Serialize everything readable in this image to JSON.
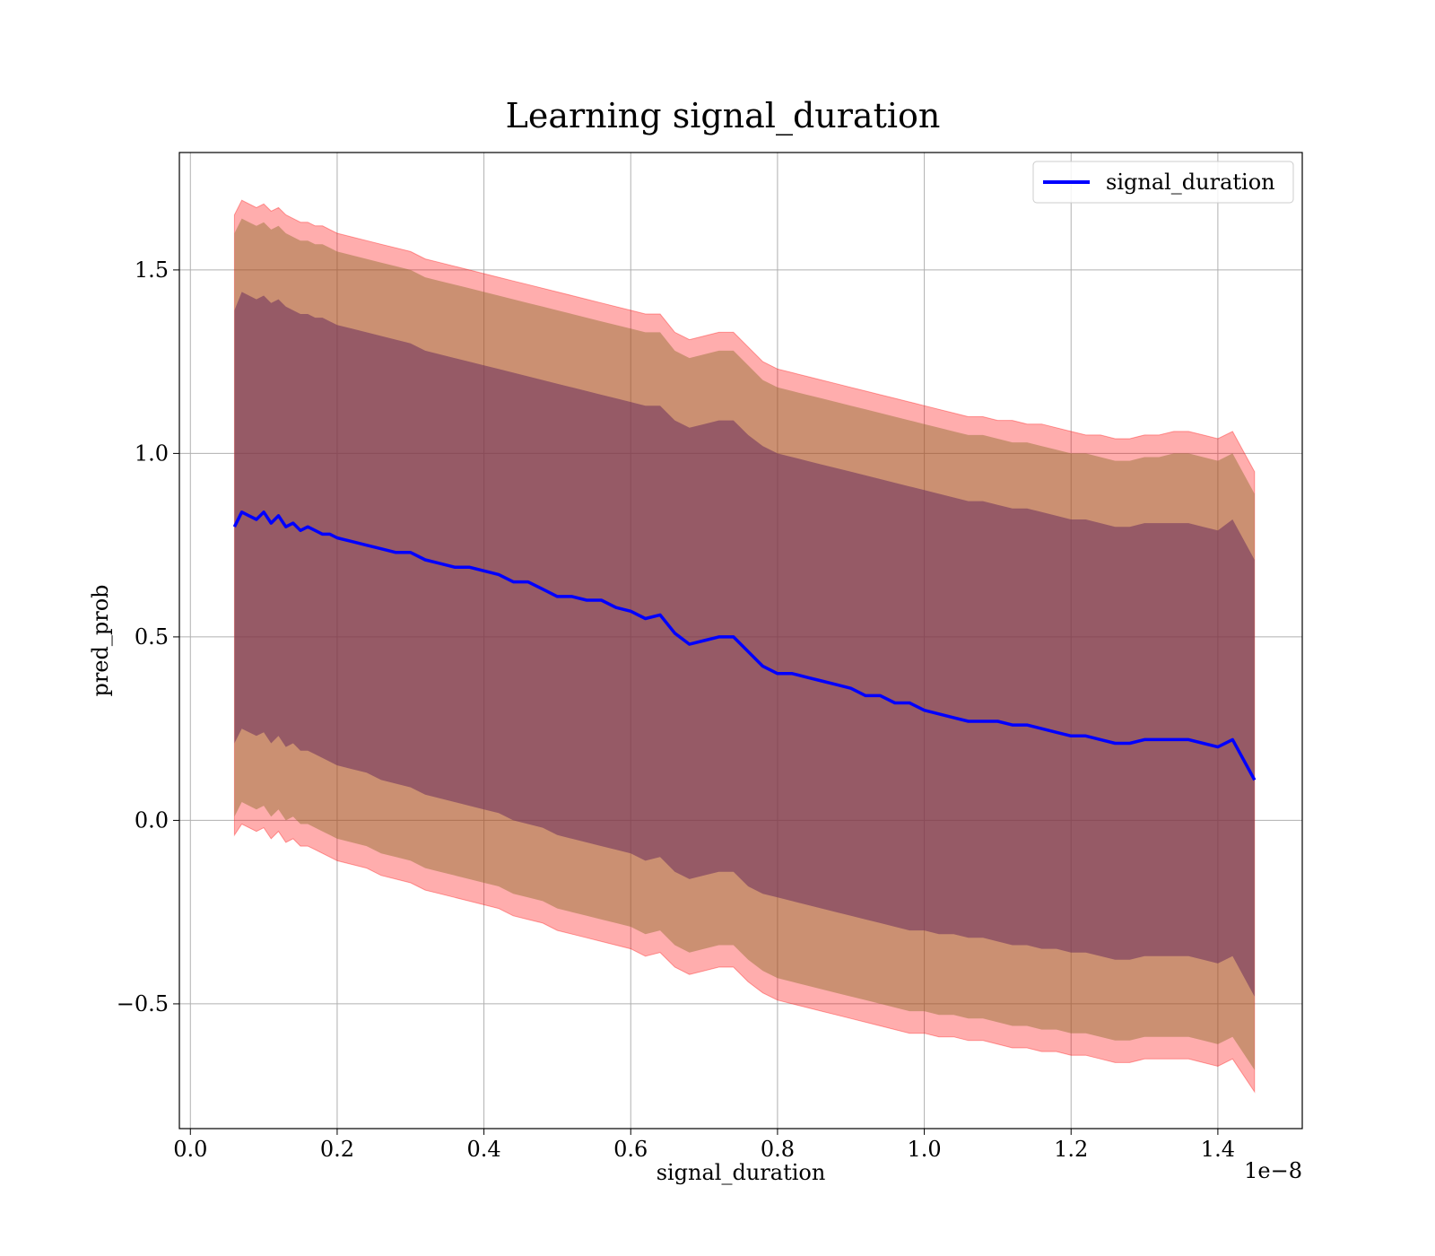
{
  "chart_data": {
    "type": "line",
    "title": "Learning signal_duration",
    "xlabel": "signal_duration",
    "ylabel": "pred_prob",
    "x_offset_label": "1e−8",
    "xlim": [
      -0.015,
      1.515
    ],
    "ylim": [
      -0.84,
      1.82
    ],
    "xticks": [
      0.0,
      0.2,
      0.4,
      0.6,
      0.8,
      1.0,
      1.2,
      1.4
    ],
    "xtick_labels": [
      "0.0",
      "0.2",
      "0.4",
      "0.6",
      "0.8",
      "1.0",
      "1.2",
      "1.4"
    ],
    "yticks": [
      -0.5,
      0.0,
      0.5,
      1.0,
      1.5
    ],
    "ytick_labels": [
      "−0.5",
      "0.0",
      "0.5",
      "1.0",
      "1.5"
    ],
    "grid": true,
    "legend_position": "top-right",
    "colors": {
      "line": "#0000ff",
      "band_outer": "#ff0000",
      "band_middle": "#8c6d2a",
      "band_inner": "#6b2d5c",
      "grid": "#b0b0b0"
    },
    "series": [
      {
        "name": "signal_duration",
        "x": [
          0.06,
          0.07,
          0.08,
          0.09,
          0.1,
          0.11,
          0.12,
          0.13,
          0.14,
          0.15,
          0.16,
          0.17,
          0.18,
          0.19,
          0.2,
          0.22,
          0.24,
          0.26,
          0.28,
          0.3,
          0.32,
          0.34,
          0.36,
          0.38,
          0.4,
          0.42,
          0.44,
          0.46,
          0.48,
          0.5,
          0.52,
          0.54,
          0.56,
          0.58,
          0.6,
          0.62,
          0.64,
          0.66,
          0.68,
          0.7,
          0.72,
          0.74,
          0.76,
          0.78,
          0.8,
          0.82,
          0.84,
          0.86,
          0.88,
          0.9,
          0.92,
          0.94,
          0.96,
          0.98,
          1.0,
          1.02,
          1.04,
          1.06,
          1.08,
          1.1,
          1.12,
          1.14,
          1.16,
          1.18,
          1.2,
          1.22,
          1.24,
          1.26,
          1.28,
          1.3,
          1.32,
          1.34,
          1.36,
          1.38,
          1.4,
          1.42,
          1.45
        ],
        "y": [
          0.8,
          0.84,
          0.83,
          0.82,
          0.84,
          0.81,
          0.83,
          0.8,
          0.81,
          0.79,
          0.8,
          0.79,
          0.78,
          0.78,
          0.77,
          0.76,
          0.75,
          0.74,
          0.73,
          0.73,
          0.71,
          0.7,
          0.69,
          0.69,
          0.68,
          0.67,
          0.65,
          0.65,
          0.63,
          0.61,
          0.61,
          0.6,
          0.6,
          0.58,
          0.57,
          0.55,
          0.56,
          0.51,
          0.48,
          0.49,
          0.5,
          0.5,
          0.46,
          0.42,
          0.4,
          0.4,
          0.39,
          0.38,
          0.37,
          0.36,
          0.34,
          0.34,
          0.32,
          0.32,
          0.3,
          0.29,
          0.28,
          0.27,
          0.27,
          0.27,
          0.26,
          0.26,
          0.25,
          0.24,
          0.23,
          0.23,
          0.22,
          0.21,
          0.21,
          0.22,
          0.22,
          0.22,
          0.22,
          0.21,
          0.2,
          0.22,
          0.11
        ],
        "band_outer": {
          "upper": [
            1.65,
            1.69,
            1.68,
            1.67,
            1.68,
            1.66,
            1.67,
            1.65,
            1.64,
            1.63,
            1.63,
            1.62,
            1.62,
            1.61,
            1.6,
            1.59,
            1.58,
            1.57,
            1.56,
            1.55,
            1.53,
            1.52,
            1.51,
            1.5,
            1.49,
            1.48,
            1.47,
            1.46,
            1.45,
            1.44,
            1.43,
            1.42,
            1.41,
            1.4,
            1.39,
            1.38,
            1.38,
            1.33,
            1.31,
            1.32,
            1.33,
            1.33,
            1.29,
            1.25,
            1.23,
            1.22,
            1.21,
            1.2,
            1.19,
            1.18,
            1.17,
            1.16,
            1.15,
            1.14,
            1.13,
            1.12,
            1.11,
            1.1,
            1.1,
            1.09,
            1.09,
            1.08,
            1.08,
            1.07,
            1.06,
            1.05,
            1.05,
            1.04,
            1.04,
            1.05,
            1.05,
            1.06,
            1.06,
            1.05,
            1.04,
            1.06,
            0.95
          ],
          "lower": [
            -0.04,
            -0.01,
            -0.02,
            -0.03,
            -0.02,
            -0.05,
            -0.03,
            -0.06,
            -0.05,
            -0.07,
            -0.07,
            -0.08,
            -0.09,
            -0.1,
            -0.11,
            -0.12,
            -0.13,
            -0.15,
            -0.16,
            -0.17,
            -0.19,
            -0.2,
            -0.21,
            -0.22,
            -0.23,
            -0.24,
            -0.26,
            -0.27,
            -0.28,
            -0.3,
            -0.31,
            -0.32,
            -0.33,
            -0.34,
            -0.35,
            -0.37,
            -0.36,
            -0.4,
            -0.42,
            -0.41,
            -0.4,
            -0.4,
            -0.44,
            -0.47,
            -0.49,
            -0.5,
            -0.51,
            -0.52,
            -0.53,
            -0.54,
            -0.55,
            -0.56,
            -0.57,
            -0.58,
            -0.58,
            -0.59,
            -0.59,
            -0.6,
            -0.6,
            -0.61,
            -0.62,
            -0.62,
            -0.63,
            -0.63,
            -0.64,
            -0.64,
            -0.65,
            -0.66,
            -0.66,
            -0.65,
            -0.65,
            -0.65,
            -0.65,
            -0.66,
            -0.67,
            -0.65,
            -0.74
          ]
        },
        "band_middle": {
          "upper": [
            1.6,
            1.64,
            1.63,
            1.62,
            1.63,
            1.61,
            1.62,
            1.6,
            1.59,
            1.58,
            1.58,
            1.57,
            1.57,
            1.56,
            1.55,
            1.54,
            1.53,
            1.52,
            1.51,
            1.5,
            1.48,
            1.47,
            1.46,
            1.45,
            1.44,
            1.43,
            1.42,
            1.41,
            1.4,
            1.39,
            1.38,
            1.37,
            1.36,
            1.35,
            1.34,
            1.33,
            1.33,
            1.28,
            1.26,
            1.27,
            1.28,
            1.28,
            1.24,
            1.2,
            1.18,
            1.17,
            1.16,
            1.15,
            1.14,
            1.13,
            1.12,
            1.11,
            1.1,
            1.09,
            1.08,
            1.07,
            1.06,
            1.05,
            1.05,
            1.04,
            1.03,
            1.03,
            1.02,
            1.01,
            1.0,
            1.0,
            0.99,
            0.98,
            0.98,
            0.99,
            0.99,
            1.0,
            1.0,
            0.99,
            0.98,
            1.0,
            0.89
          ],
          "lower": [
            0.01,
            0.05,
            0.04,
            0.03,
            0.04,
            0.01,
            0.03,
            0.0,
            0.01,
            -0.01,
            -0.01,
            -0.02,
            -0.03,
            -0.04,
            -0.05,
            -0.06,
            -0.07,
            -0.09,
            -0.1,
            -0.11,
            -0.13,
            -0.14,
            -0.15,
            -0.16,
            -0.17,
            -0.18,
            -0.2,
            -0.21,
            -0.22,
            -0.24,
            -0.25,
            -0.26,
            -0.27,
            -0.28,
            -0.29,
            -0.31,
            -0.3,
            -0.34,
            -0.36,
            -0.35,
            -0.34,
            -0.34,
            -0.38,
            -0.41,
            -0.43,
            -0.44,
            -0.45,
            -0.46,
            -0.47,
            -0.48,
            -0.49,
            -0.5,
            -0.51,
            -0.52,
            -0.52,
            -0.53,
            -0.53,
            -0.54,
            -0.54,
            -0.55,
            -0.56,
            -0.56,
            -0.57,
            -0.57,
            -0.58,
            -0.58,
            -0.59,
            -0.6,
            -0.6,
            -0.59,
            -0.59,
            -0.59,
            -0.59,
            -0.6,
            -0.61,
            -0.59,
            -0.68
          ]
        },
        "band_inner": {
          "upper": [
            1.39,
            1.44,
            1.43,
            1.42,
            1.43,
            1.41,
            1.42,
            1.4,
            1.39,
            1.38,
            1.38,
            1.37,
            1.37,
            1.36,
            1.35,
            1.34,
            1.33,
            1.32,
            1.31,
            1.3,
            1.28,
            1.27,
            1.26,
            1.25,
            1.24,
            1.23,
            1.22,
            1.21,
            1.2,
            1.19,
            1.18,
            1.17,
            1.16,
            1.15,
            1.14,
            1.13,
            1.13,
            1.09,
            1.07,
            1.08,
            1.09,
            1.09,
            1.05,
            1.02,
            1.0,
            0.99,
            0.98,
            0.97,
            0.96,
            0.95,
            0.94,
            0.93,
            0.92,
            0.91,
            0.9,
            0.89,
            0.88,
            0.87,
            0.87,
            0.86,
            0.85,
            0.85,
            0.84,
            0.83,
            0.82,
            0.82,
            0.81,
            0.8,
            0.8,
            0.81,
            0.81,
            0.81,
            0.81,
            0.8,
            0.79,
            0.82,
            0.71
          ],
          "lower": [
            0.21,
            0.25,
            0.24,
            0.23,
            0.24,
            0.21,
            0.23,
            0.2,
            0.21,
            0.19,
            0.19,
            0.18,
            0.17,
            0.16,
            0.15,
            0.14,
            0.13,
            0.11,
            0.1,
            0.09,
            0.07,
            0.06,
            0.05,
            0.04,
            0.03,
            0.02,
            0.0,
            -0.01,
            -0.02,
            -0.04,
            -0.05,
            -0.06,
            -0.07,
            -0.08,
            -0.09,
            -0.11,
            -0.1,
            -0.14,
            -0.16,
            -0.15,
            -0.14,
            -0.14,
            -0.18,
            -0.2,
            -0.21,
            -0.22,
            -0.23,
            -0.24,
            -0.25,
            -0.26,
            -0.27,
            -0.28,
            -0.29,
            -0.3,
            -0.3,
            -0.31,
            -0.31,
            -0.32,
            -0.32,
            -0.33,
            -0.34,
            -0.34,
            -0.35,
            -0.35,
            -0.36,
            -0.36,
            -0.37,
            -0.38,
            -0.38,
            -0.37,
            -0.37,
            -0.37,
            -0.37,
            -0.38,
            -0.39,
            -0.37,
            -0.48
          ]
        }
      }
    ]
  }
}
